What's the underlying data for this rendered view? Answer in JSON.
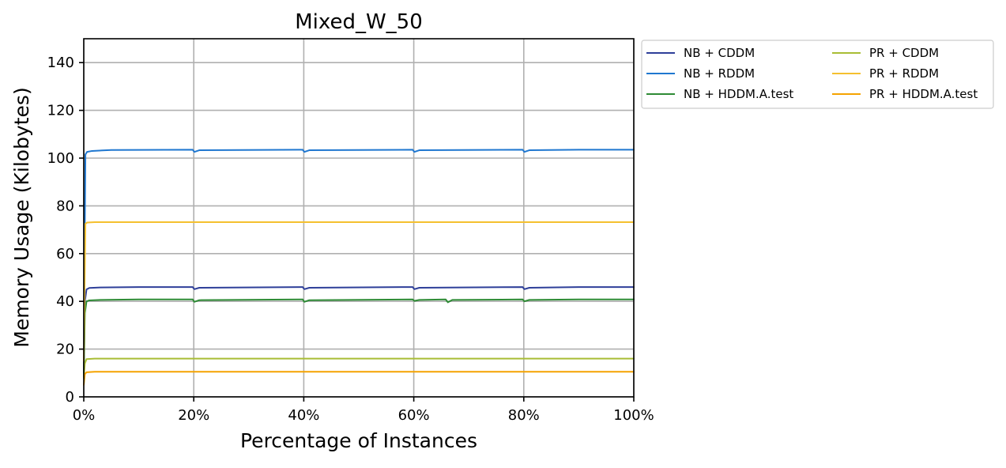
{
  "chart_data": {
    "type": "line",
    "title": "Mixed_W_50",
    "xlabel": "Percentage of Instances",
    "ylabel": "Memory Usage (Kilobytes)",
    "xlim": [
      0,
      100
    ],
    "ylim": [
      0,
      150
    ],
    "x_ticks": [
      0,
      20,
      40,
      60,
      80,
      100
    ],
    "x_tick_labels": [
      "0%",
      "20%",
      "40%",
      "60%",
      "80%",
      "100%"
    ],
    "y_ticks": [
      0,
      20,
      40,
      60,
      80,
      100,
      120,
      140
    ],
    "y_tick_labels": [
      "0",
      "20",
      "40",
      "60",
      "80",
      "100",
      "120",
      "140"
    ],
    "grid": true,
    "legend_position": "outside-upper-right",
    "legend_columns": 2,
    "series": [
      {
        "name": "NB + CDDM",
        "color": "#2e3f99",
        "x": [
          0,
          0.2,
          0.5,
          1,
          3,
          10,
          19.8,
          20.1,
          21,
          39.8,
          40.1,
          41,
          59.8,
          60.1,
          61,
          79.8,
          80.1,
          81,
          90,
          100
        ],
        "y": [
          10,
          40,
          45,
          45.6,
          45.8,
          46,
          46,
          45.1,
          45.7,
          46,
          45.1,
          45.7,
          46,
          45.1,
          45.7,
          46,
          45.1,
          45.7,
          46,
          46
        ]
      },
      {
        "name": "NB + RDDM",
        "color": "#1f77d0",
        "x": [
          0,
          0.15,
          0.3,
          0.6,
          1.5,
          5,
          19.8,
          20.1,
          21,
          39.8,
          40.1,
          41,
          59.8,
          60.1,
          61,
          79.8,
          80.1,
          81,
          90,
          100
        ],
        "y": [
          20,
          60,
          101.5,
          102.6,
          103,
          103.4,
          103.5,
          102.6,
          103.3,
          103.5,
          102.6,
          103.3,
          103.5,
          102.6,
          103.3,
          103.5,
          102.6,
          103.3,
          103.5,
          103.5
        ]
      },
      {
        "name": "NB + HDDM.A.test",
        "color": "#2e8b35",
        "x": [
          0,
          0.2,
          0.5,
          1,
          3,
          10,
          19.8,
          20.1,
          21,
          39.8,
          40.1,
          41,
          59.8,
          60.1,
          61,
          65.8,
          66.2,
          67,
          79.8,
          80.1,
          81,
          90,
          100
        ],
        "y": [
          8,
          35,
          40,
          40.4,
          40.6,
          40.8,
          40.8,
          39.8,
          40.5,
          40.8,
          39.8,
          40.5,
          40.8,
          40.2,
          40.6,
          40.8,
          39.6,
          40.6,
          40.8,
          40,
          40.6,
          40.8,
          40.8
        ]
      },
      {
        "name": "PR + CDDM",
        "color": "#a9bd35",
        "x": [
          0,
          0.2,
          0.5,
          2,
          10,
          30,
          50,
          70,
          90,
          100
        ],
        "y": [
          8,
          14,
          15.8,
          16,
          16,
          16,
          16,
          16,
          16,
          16
        ]
      },
      {
        "name": "PR + RDDM",
        "color": "#f5c02f",
        "x": [
          0,
          0.15,
          0.3,
          0.6,
          2,
          10,
          30,
          50,
          70,
          90,
          100
        ],
        "y": [
          15,
          45,
          72.5,
          73,
          73.2,
          73.2,
          73.2,
          73.2,
          73.2,
          73.2,
          73.2
        ]
      },
      {
        "name": "PR + HDDM.A.test",
        "color": "#f5a300",
        "x": [
          0,
          0.2,
          0.5,
          2,
          10,
          30,
          50,
          70,
          90,
          100
        ],
        "y": [
          5,
          9.5,
          10.3,
          10.5,
          10.5,
          10.5,
          10.5,
          10.5,
          10.5,
          10.5
        ]
      }
    ]
  }
}
